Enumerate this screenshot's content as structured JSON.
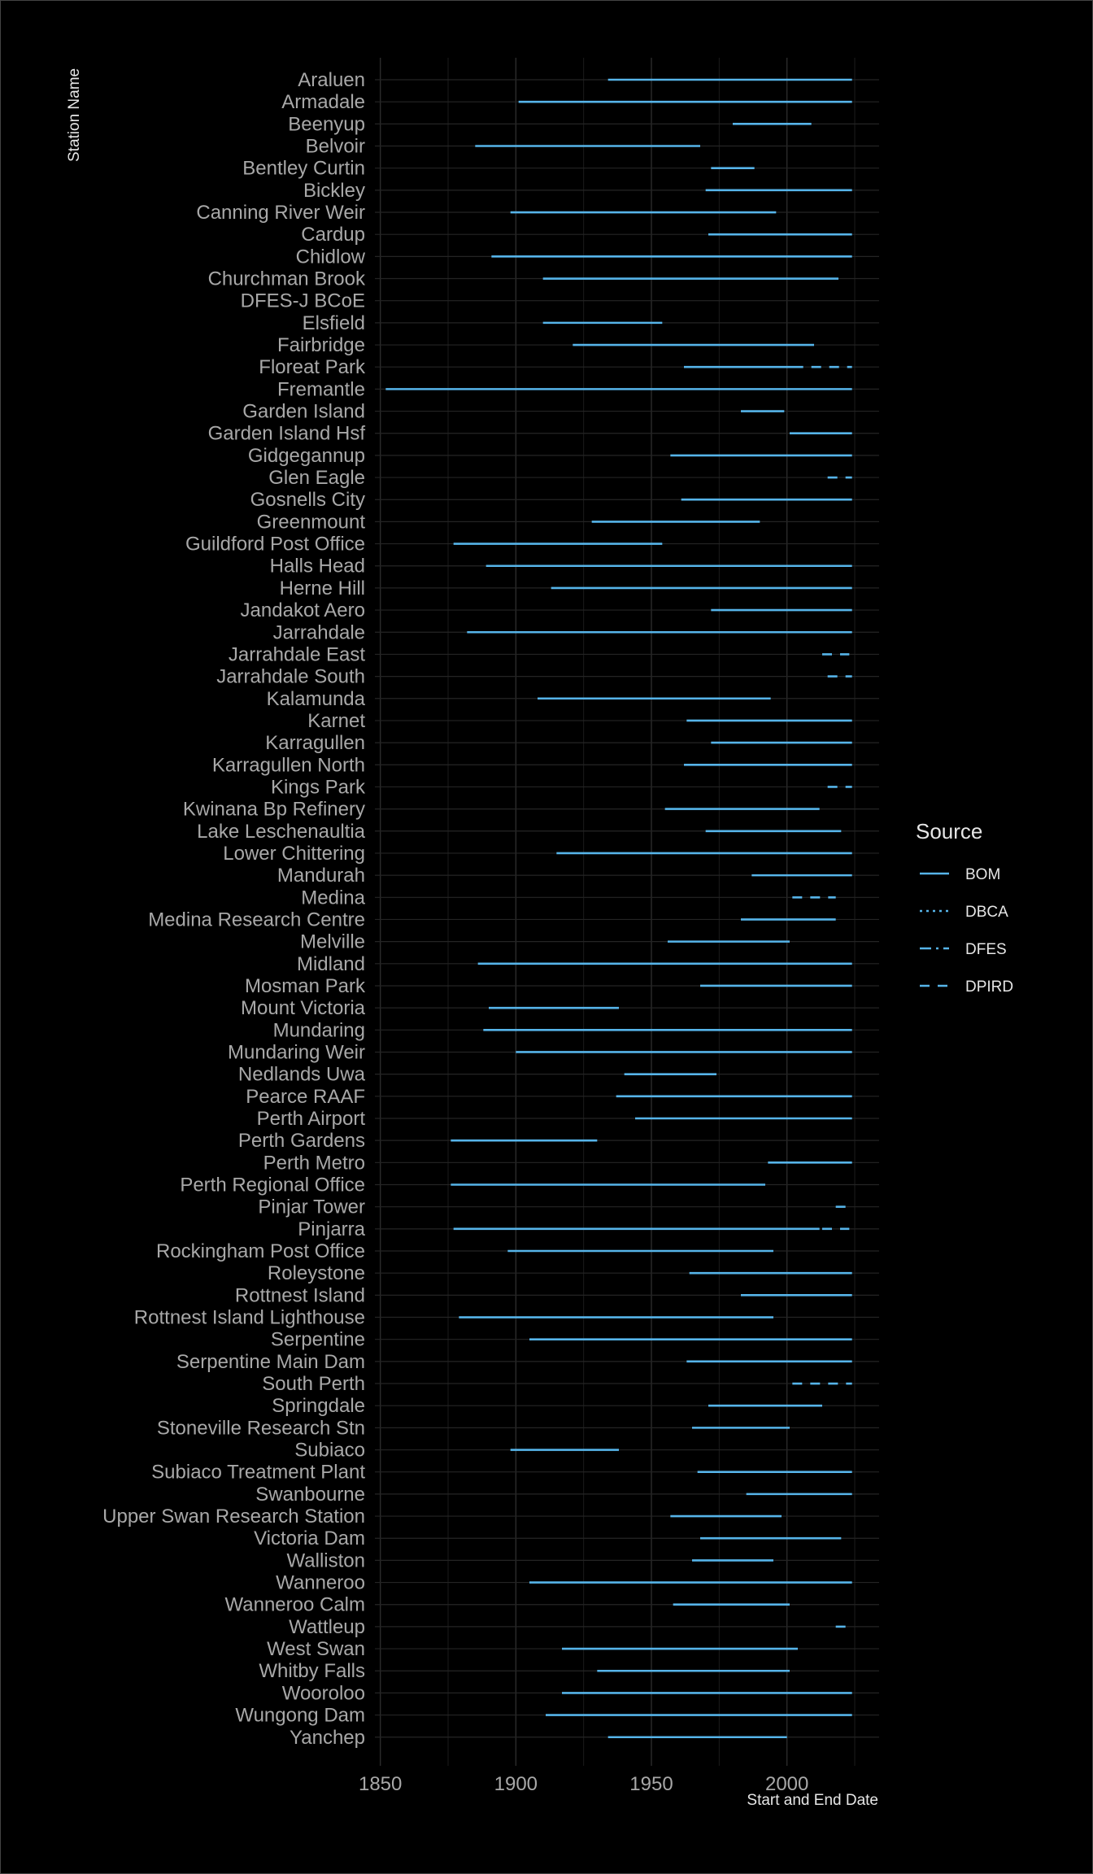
{
  "chart_data": {
    "type": "timeline",
    "xlabel": "Start and End Date",
    "ylabel": "Station Name",
    "xlim": [
      1848,
      2034
    ],
    "xticks": [
      1850,
      1900,
      1950,
      2000
    ],
    "grid": true,
    "legend": {
      "title": "Source",
      "position": "right",
      "entries": [
        {
          "name": "BOM",
          "dash": "solid",
          "color": "#56b4e9"
        },
        {
          "name": "DBCA",
          "dash": "dotted",
          "color": "#56b4e9"
        },
        {
          "name": "DFES",
          "dash": "dashdot",
          "color": "#56b4e9"
        },
        {
          "name": "DPIRD",
          "dash": "dashed",
          "color": "#56b4e9"
        }
      ]
    },
    "stations": [
      {
        "name": "Araluen",
        "segments": [
          {
            "source": "BOM",
            "start": 1934,
            "end": 2024
          }
        ]
      },
      {
        "name": "Armadale",
        "segments": [
          {
            "source": "BOM",
            "start": 1901,
            "end": 2024
          }
        ]
      },
      {
        "name": "Beenyup",
        "segments": [
          {
            "source": "BOM",
            "start": 1980,
            "end": 2009
          }
        ]
      },
      {
        "name": "Belvoir",
        "segments": [
          {
            "source": "BOM",
            "start": 1885,
            "end": 1968
          }
        ]
      },
      {
        "name": "Bentley Curtin",
        "segments": [
          {
            "source": "BOM",
            "start": 1972,
            "end": 1988
          }
        ]
      },
      {
        "name": "Bickley",
        "segments": [
          {
            "source": "BOM",
            "start": 1970,
            "end": 2024
          }
        ]
      },
      {
        "name": "Canning River Weir",
        "segments": [
          {
            "source": "BOM",
            "start": 1898,
            "end": 1996
          }
        ]
      },
      {
        "name": "Cardup",
        "segments": [
          {
            "source": "BOM",
            "start": 1971,
            "end": 2024
          }
        ]
      },
      {
        "name": "Chidlow",
        "segments": [
          {
            "source": "BOM",
            "start": 1891,
            "end": 2024
          }
        ]
      },
      {
        "name": "Churchman Brook",
        "segments": [
          {
            "source": "BOM",
            "start": 1910,
            "end": 2019
          }
        ]
      },
      {
        "name": "DFES-J BCoE",
        "segments": []
      },
      {
        "name": "Elsfield",
        "segments": [
          {
            "source": "BOM",
            "start": 1910,
            "end": 1954
          }
        ]
      },
      {
        "name": "Fairbridge",
        "segments": [
          {
            "source": "BOM",
            "start": 1921,
            "end": 2010
          }
        ]
      },
      {
        "name": "Floreat Park",
        "segments": [
          {
            "source": "BOM",
            "start": 1962,
            "end": 2006
          },
          {
            "source": "DPIRD",
            "start": 2009,
            "end": 2024
          }
        ]
      },
      {
        "name": "Fremantle",
        "segments": [
          {
            "source": "BOM",
            "start": 1852,
            "end": 2024
          }
        ]
      },
      {
        "name": "Garden Island",
        "segments": [
          {
            "source": "BOM",
            "start": 1983,
            "end": 1999
          }
        ]
      },
      {
        "name": "Garden Island Hsf",
        "segments": [
          {
            "source": "BOM",
            "start": 2001,
            "end": 2024
          }
        ]
      },
      {
        "name": "Gidgegannup",
        "segments": [
          {
            "source": "BOM",
            "start": 1957,
            "end": 2024
          }
        ]
      },
      {
        "name": "Glen Eagle",
        "segments": [
          {
            "source": "DPIRD",
            "start": 2015,
            "end": 2024
          }
        ]
      },
      {
        "name": "Gosnells City",
        "segments": [
          {
            "source": "BOM",
            "start": 1961,
            "end": 2024
          }
        ]
      },
      {
        "name": "Greenmount",
        "segments": [
          {
            "source": "BOM",
            "start": 1928,
            "end": 1990
          }
        ]
      },
      {
        "name": "Guildford Post Office",
        "segments": [
          {
            "source": "BOM",
            "start": 1877,
            "end": 1954
          }
        ]
      },
      {
        "name": "Halls Head",
        "segments": [
          {
            "source": "BOM",
            "start": 1889,
            "end": 2024
          }
        ]
      },
      {
        "name": "Herne Hill",
        "segments": [
          {
            "source": "BOM",
            "start": 1913,
            "end": 2024
          }
        ]
      },
      {
        "name": "Jandakot Aero",
        "segments": [
          {
            "source": "BOM",
            "start": 1972,
            "end": 2024
          }
        ]
      },
      {
        "name": "Jarrahdale",
        "segments": [
          {
            "source": "BOM",
            "start": 1882,
            "end": 2024
          }
        ]
      },
      {
        "name": "Jarrahdale East",
        "segments": [
          {
            "source": "DPIRD",
            "start": 2013,
            "end": 2023
          }
        ]
      },
      {
        "name": "Jarrahdale South",
        "segments": [
          {
            "source": "DPIRD",
            "start": 2015,
            "end": 2024
          }
        ]
      },
      {
        "name": "Kalamunda",
        "segments": [
          {
            "source": "BOM",
            "start": 1908,
            "end": 1994
          }
        ]
      },
      {
        "name": "Karnet",
        "segments": [
          {
            "source": "BOM",
            "start": 1963,
            "end": 2024
          }
        ]
      },
      {
        "name": "Karragullen",
        "segments": [
          {
            "source": "BOM",
            "start": 1972,
            "end": 2024
          }
        ]
      },
      {
        "name": "Karragullen North",
        "segments": [
          {
            "source": "BOM",
            "start": 1962,
            "end": 2024
          }
        ]
      },
      {
        "name": "Kings Park",
        "segments": [
          {
            "source": "DPIRD",
            "start": 2015,
            "end": 2024
          }
        ]
      },
      {
        "name": "Kwinana Bp Refinery",
        "segments": [
          {
            "source": "BOM",
            "start": 1955,
            "end": 2012
          }
        ]
      },
      {
        "name": "Lake Leschenaultia",
        "segments": [
          {
            "source": "BOM",
            "start": 1970,
            "end": 2020
          }
        ]
      },
      {
        "name": "Lower Chittering",
        "segments": [
          {
            "source": "BOM",
            "start": 1915,
            "end": 2024
          }
        ]
      },
      {
        "name": "Mandurah",
        "segments": [
          {
            "source": "BOM",
            "start": 1987,
            "end": 2024
          }
        ]
      },
      {
        "name": "Medina",
        "segments": [
          {
            "source": "DPIRD",
            "start": 2002,
            "end": 2018
          }
        ]
      },
      {
        "name": "Medina Research Centre",
        "segments": [
          {
            "source": "BOM",
            "start": 1983,
            "end": 2018
          }
        ]
      },
      {
        "name": "Melville",
        "segments": [
          {
            "source": "BOM",
            "start": 1956,
            "end": 2001
          }
        ]
      },
      {
        "name": "Midland",
        "segments": [
          {
            "source": "BOM",
            "start": 1886,
            "end": 2024
          }
        ]
      },
      {
        "name": "Mosman Park",
        "segments": [
          {
            "source": "BOM",
            "start": 1968,
            "end": 2024
          }
        ]
      },
      {
        "name": "Mount Victoria",
        "segments": [
          {
            "source": "BOM",
            "start": 1890,
            "end": 1938
          }
        ]
      },
      {
        "name": "Mundaring",
        "segments": [
          {
            "source": "BOM",
            "start": 1888,
            "end": 2024
          }
        ]
      },
      {
        "name": "Mundaring Weir",
        "segments": [
          {
            "source": "BOM",
            "start": 1900,
            "end": 2024
          }
        ]
      },
      {
        "name": "Nedlands Uwa",
        "segments": [
          {
            "source": "BOM",
            "start": 1940,
            "end": 1974
          }
        ]
      },
      {
        "name": "Pearce RAAF",
        "segments": [
          {
            "source": "BOM",
            "start": 1937,
            "end": 2024
          }
        ]
      },
      {
        "name": "Perth Airport",
        "segments": [
          {
            "source": "BOM",
            "start": 1944,
            "end": 2024
          }
        ]
      },
      {
        "name": "Perth Gardens",
        "segments": [
          {
            "source": "BOM",
            "start": 1876,
            "end": 1930
          }
        ]
      },
      {
        "name": "Perth Metro",
        "segments": [
          {
            "source": "BOM",
            "start": 1993,
            "end": 2024
          }
        ]
      },
      {
        "name": "Perth Regional Office",
        "segments": [
          {
            "source": "BOM",
            "start": 1876,
            "end": 1992
          }
        ]
      },
      {
        "name": "Pinjar Tower",
        "segments": [
          {
            "source": "DPIRD",
            "start": 2018,
            "end": 2023
          }
        ]
      },
      {
        "name": "Pinjarra",
        "segments": [
          {
            "source": "BOM",
            "start": 1877,
            "end": 2012
          },
          {
            "source": "DPIRD",
            "start": 2013,
            "end": 2023
          }
        ]
      },
      {
        "name": "Rockingham Post Office",
        "segments": [
          {
            "source": "BOM",
            "start": 1897,
            "end": 1995
          }
        ]
      },
      {
        "name": "Roleystone",
        "segments": [
          {
            "source": "BOM",
            "start": 1964,
            "end": 2024
          }
        ]
      },
      {
        "name": "Rottnest Island",
        "segments": [
          {
            "source": "BOM",
            "start": 1983,
            "end": 2024
          }
        ]
      },
      {
        "name": "Rottnest Island Lighthouse",
        "segments": [
          {
            "source": "BOM",
            "start": 1879,
            "end": 1995
          }
        ]
      },
      {
        "name": "Serpentine",
        "segments": [
          {
            "source": "BOM",
            "start": 1905,
            "end": 2024
          }
        ]
      },
      {
        "name": "Serpentine Main Dam",
        "segments": [
          {
            "source": "BOM",
            "start": 1963,
            "end": 2024
          }
        ]
      },
      {
        "name": "South Perth",
        "segments": [
          {
            "source": "DPIRD",
            "start": 2002,
            "end": 2024
          }
        ]
      },
      {
        "name": "Springdale",
        "segments": [
          {
            "source": "BOM",
            "start": 1971,
            "end": 2013
          }
        ]
      },
      {
        "name": "Stoneville Research Stn",
        "segments": [
          {
            "source": "BOM",
            "start": 1965,
            "end": 2001
          }
        ]
      },
      {
        "name": "Subiaco",
        "segments": [
          {
            "source": "BOM",
            "start": 1898,
            "end": 1938
          }
        ]
      },
      {
        "name": "Subiaco Treatment Plant",
        "segments": [
          {
            "source": "BOM",
            "start": 1967,
            "end": 2024
          }
        ]
      },
      {
        "name": "Swanbourne",
        "segments": [
          {
            "source": "BOM",
            "start": 1985,
            "end": 2024
          }
        ]
      },
      {
        "name": "Upper Swan Research Station",
        "segments": [
          {
            "source": "BOM",
            "start": 1957,
            "end": 1998
          }
        ]
      },
      {
        "name": "Victoria Dam",
        "segments": [
          {
            "source": "BOM",
            "start": 1968,
            "end": 2020
          }
        ]
      },
      {
        "name": "Walliston",
        "segments": [
          {
            "source": "BOM",
            "start": 1965,
            "end": 1995
          }
        ]
      },
      {
        "name": "Wanneroo",
        "segments": [
          {
            "source": "BOM",
            "start": 1905,
            "end": 2024
          }
        ]
      },
      {
        "name": "Wanneroo Calm",
        "segments": [
          {
            "source": "BOM",
            "start": 1958,
            "end": 2001
          }
        ]
      },
      {
        "name": "Wattleup",
        "segments": [
          {
            "source": "DPIRD",
            "start": 2018,
            "end": 2022
          }
        ]
      },
      {
        "name": "West Swan",
        "segments": [
          {
            "source": "BOM",
            "start": 1917,
            "end": 2004
          }
        ]
      },
      {
        "name": "Whitby Falls",
        "segments": [
          {
            "source": "BOM",
            "start": 1930,
            "end": 2001
          }
        ]
      },
      {
        "name": "Wooroloo",
        "segments": [
          {
            "source": "BOM",
            "start": 1917,
            "end": 2024
          }
        ]
      },
      {
        "name": "Wungong Dam",
        "segments": [
          {
            "source": "BOM",
            "start": 1911,
            "end": 2024
          }
        ]
      },
      {
        "name": "Yanchep",
        "segments": [
          {
            "source": "BOM",
            "start": 1934,
            "end": 2000
          }
        ]
      }
    ]
  }
}
